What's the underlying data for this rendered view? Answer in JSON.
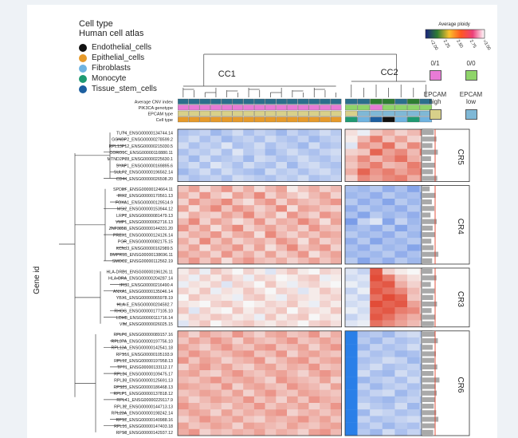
{
  "legend": {
    "title_line1": "Cell type",
    "title_line2": "Human cell atlas",
    "items": [
      {
        "label": "Endothelial_cells",
        "color": "#111111"
      },
      {
        "label": "Epithelial_cells",
        "color": "#e69a2a"
      },
      {
        "label": "Fibroblasts",
        "color": "#6fb3e0"
      },
      {
        "label": "Monocyte",
        "color": "#1f9a72"
      },
      {
        "label": "Tissue_stem_cells",
        "color": "#1d5fa0"
      }
    ]
  },
  "ploidy_legend": {
    "title": "Average ploidy",
    "ticks": [
      "<2.00",
      "2.25",
      "2.50",
      "2.75",
      ">3.00"
    ],
    "colors": [
      "#1a237e",
      "#2e7d32",
      "#fbc02d",
      "#ff5722",
      "#ec407a",
      "#ffffff"
    ]
  },
  "genotype_legend": {
    "items": [
      {
        "label": "0/1",
        "color": "#e87bd6"
      },
      {
        "label": "0/0",
        "color": "#8fd46a"
      }
    ]
  },
  "epcam_legend": {
    "items": [
      {
        "label": "EPCAM high",
        "color": "#d8d08a"
      },
      {
        "label": "EPCAM low",
        "color": "#7fb8d6"
      }
    ]
  },
  "chart_data": {
    "type": "heatmap",
    "y_axis_label": "Gene id",
    "column_clusters": [
      {
        "label": "CC1",
        "n_cols": 15
      },
      {
        "label": "CC2",
        "n_cols": 7
      }
    ],
    "annotation_rows": [
      "Average CNV index",
      "PIK3CA genotype",
      "EPCAM type",
      "Cell type"
    ],
    "annotation_colors": {
      "Average CNV index": "#2b6f8c",
      "PIK3CA genotype": "#e87bd6",
      "EPCAM type": "#d8d08a",
      "Cell type": "#e69a2a"
    },
    "annotation_overrides": {
      "Average CNV index": {
        "17": "#2e7d32",
        "18": "#2e7d32",
        "20": "#2e7d32"
      },
      "PIK3CA genotype": {
        "15": "#8fd46a",
        "16": "#8fd46a",
        "17": "#e87bd6",
        "18": "#8fd46a",
        "19": "#8fd46a",
        "20": "#8fd46a",
        "21": "#8fd46a"
      },
      "EPCAM type": {
        "16": "#7fb8d6",
        "17": "#7fb8d6",
        "18": "#7fb8d6",
        "19": "#7fb8d6",
        "20": "#7fb8d6",
        "21": "#7fb8d6"
      },
      "Cell type": {
        "15": "#1f9a72",
        "16": "#6fb3e0",
        "17": "#1d5fa0",
        "18": "#111111",
        "19": "#6fb3e0",
        "20": "#1f9a72",
        "21": "#6fb3e0"
      }
    },
    "row_clusters": [
      {
        "label": "CR5",
        "genes": [
          "TUT4_ENSG00000134744.14",
          "GGNBP2_ENSG00000278599.2",
          "RPL13P12_ENSG00000215030.5",
          "CORO1C_ENSG00000110880.11",
          "MTND2P28_ENSG00000225630.1",
          "SYAP1_ENSG00000169895.6",
          "SULF2_ENSG00000196562.14",
          "CD44_ENSG00000026508.20"
        ]
      },
      {
        "label": "CR4",
        "genes": [
          "SPDEF_ENSG00000124664.11",
          "IRX2_ENSG00000170561.13",
          "FOXA1_ENSG00000129514.9",
          "MSI2_ENSG00000153944.12",
          "LRP2_ENSG00000081479.13",
          "VMP1_ENSG00000062716.13",
          "ZNF385B_ENSG00000144331.20",
          "PREX1_ENSG00000124126.14",
          "PGR_ENSG00000082175.15",
          "KCNJ3_ENSG00000162989.5",
          "BMPR1B_ENSG00000138696.11",
          "SMOC2_ENSG00000112562.19"
        ]
      },
      {
        "label": "CR3",
        "genes": [
          "HLA-DRB1_ENSG00000196126.11",
          "HLA-DRA_ENSG00000204287.14",
          "IFI30_ENSG00000216490.4",
          "ANXA1_ENSG00000135046.14",
          "YBX1_ENSG00000065978.19",
          "HLA-E_ENSG00000204592.7",
          "RHOG_ENSG00000177105.10",
          "LDHB_ENSG00000111716.14",
          "VIM_ENSG00000026025.15"
        ]
      },
      {
        "label": "CR6",
        "genes": [
          "RPLP0_ENSG00000089157.16",
          "RPL37A_ENSG00000197756.10",
          "RPL13A_ENSG00000142541.18",
          "RPS16_ENSG00000105193.9",
          "RPL12_ENSG00000197958.13",
          "TPT1_ENSG00000133112.17",
          "RPL34_ENSG00000109475.17",
          "RPL23_ENSG00000125691.13",
          "RPS23_ENSG00000186468.13",
          "RPLP1_ENSG00000137818.12",
          "RPL41_ENSG00000229117.9",
          "RPL32_ENSG00000144713.13",
          "RPL23A_ENSG00000198242.14",
          "RPS2_ENSG00000140988.16",
          "RPL10_ENSG00000147403.18",
          "RPS8_ENSG00000142937.12"
        ]
      }
    ],
    "value_range": [
      -1.5,
      1.5
    ],
    "color_scale": {
      "low": "#3b6fe0",
      "mid": "#f7f7f7",
      "high": "#e0402a"
    },
    "values_cc1": [
      [
        -0.6,
        -0.5,
        -0.4,
        -0.7,
        -0.5,
        -0.3,
        -0.6,
        -0.4,
        -0.5,
        -0.7,
        -0.4,
        -0.6,
        -0.5,
        -0.3,
        -0.5
      ],
      [
        -0.5,
        -0.3,
        -0.6,
        -0.4,
        -0.7,
        -0.5,
        -0.4,
        -0.6,
        -0.3,
        -0.5,
        -0.6,
        -0.4,
        -0.7,
        -0.5,
        -0.4
      ],
      [
        -0.3,
        -0.6,
        -0.4,
        -0.5,
        -0.2,
        -0.6,
        -0.5,
        -0.3,
        -0.6,
        -0.4,
        -0.5,
        -0.7,
        -0.3,
        -0.6,
        -0.5
      ],
      [
        -0.6,
        -0.4,
        -0.5,
        -0.3,
        -0.6,
        -0.2,
        -0.5,
        -0.4,
        -0.7,
        -0.5,
        -0.3,
        -0.5,
        -0.6,
        -0.4,
        -0.3
      ],
      [
        -0.4,
        -0.7,
        -0.3,
        -0.6,
        -0.5,
        -0.4,
        -0.7,
        -0.3,
        -0.4,
        -0.6,
        -0.5,
        -0.3,
        -0.5,
        -0.6,
        -0.4
      ],
      [
        -0.5,
        -0.3,
        -0.6,
        -0.2,
        -0.4,
        -0.6,
        -0.3,
        -0.5,
        -0.6,
        -0.3,
        -0.7,
        -0.4,
        -0.3,
        -0.5,
        -0.6
      ],
      [
        -0.7,
        -0.5,
        -0.3,
        -0.6,
        -0.3,
        -0.5,
        -0.6,
        -0.7,
        -0.3,
        -0.5,
        -0.4,
        -0.6,
        -0.4,
        -0.3,
        -0.5
      ],
      [
        -0.4,
        -0.6,
        -0.5,
        -0.4,
        -0.6,
        -0.3,
        -0.4,
        -0.5,
        -0.6,
        -0.4,
        -0.5,
        -0.3,
        -0.6,
        -0.5,
        -0.4
      ],
      [
        0.4,
        0.7,
        0.2,
        0.5,
        0.8,
        0.3,
        0.6,
        0.2,
        0.5,
        0.7,
        0.1,
        0.4,
        0.6,
        0.3,
        0.5
      ],
      [
        0.6,
        0.3,
        0.8,
        0.4,
        0.2,
        0.7,
        0.5,
        0.9,
        0.3,
        0.6,
        0.4,
        0.2,
        0.5,
        0.7,
        0.3
      ],
      [
        0.3,
        0.8,
        0.5,
        0.6,
        0.9,
        0.4,
        0.2,
        0.6,
        0.8,
        0.3,
        0.7,
        0.5,
        0.4,
        0.6,
        0.8
      ],
      [
        0.7,
        0.2,
        0.6,
        0.9,
        0.4,
        0.8,
        0.6,
        0.3,
        0.5,
        0.9,
        0.2,
        0.7,
        0.6,
        0.4,
        0.3
      ],
      [
        0.2,
        0.6,
        0.4,
        0.3,
        0.7,
        0.5,
        0.9,
        0.4,
        0.6,
        0.2,
        0.8,
        0.5,
        0.3,
        0.8,
        0.6
      ],
      [
        0.5,
        0.9,
        0.3,
        0.7,
        0.5,
        0.2,
        0.4,
        0.8,
        0.3,
        0.6,
        0.5,
        0.9,
        0.6,
        0.2,
        0.7
      ],
      [
        0.8,
        0.4,
        0.7,
        0.2,
        0.6,
        0.9,
        0.3,
        0.5,
        0.7,
        0.4,
        0.6,
        0.3,
        0.8,
        0.5,
        0.4
      ],
      [
        0.3,
        0.6,
        0.5,
        0.8,
        0.3,
        0.6,
        0.7,
        0.2,
        0.9,
        0.5,
        0.3,
        0.6,
        0.4,
        0.7,
        0.6
      ],
      [
        0.6,
        0.3,
        0.9,
        0.4,
        0.7,
        0.3,
        0.5,
        0.6,
        0.4,
        0.8,
        0.6,
        0.2,
        0.7,
        0.3,
        0.5
      ],
      [
        0.4,
        0.7,
        0.2,
        0.6,
        0.5,
        0.8,
        0.3,
        0.7,
        0.2,
        0.5,
        0.9,
        0.4,
        0.6,
        0.8,
        0.3
      ],
      [
        0.7,
        0.5,
        0.6,
        0.3,
        0.8,
        0.4,
        0.6,
        0.3,
        0.7,
        0.3,
        0.5,
        0.8,
        0.2,
        0.5,
        0.7
      ],
      [
        0.5,
        0.8,
        0.4,
        0.7,
        0.2,
        0.6,
        0.8,
        0.5,
        0.4,
        0.6,
        0.3,
        0.5,
        0.7,
        0.4,
        0.6
      ],
      [
        0.1,
        0.3,
        -0.1,
        0.4,
        0.2,
        0.0,
        0.3,
        0.1,
        -0.2,
        0.2,
        0.4,
        0.1,
        0.0,
        0.3,
        0.2
      ],
      [
        0.2,
        -0.1,
        0.3,
        0.1,
        0.4,
        0.2,
        -0.1,
        0.3,
        0.2,
        0.0,
        0.1,
        0.3,
        0.4,
        -0.1,
        0.1
      ],
      [
        -0.1,
        0.2,
        0.1,
        0.3,
        -0.2,
        0.3,
        0.2,
        0.0,
        0.4,
        0.1,
        -0.1,
        0.2,
        0.3,
        0.1,
        0.0
      ],
      [
        0.3,
        0.1,
        0.4,
        -0.1,
        0.2,
        0.1,
        0.4,
        0.2,
        0.0,
        0.3,
        0.2,
        -0.2,
        0.1,
        0.4,
        0.2
      ],
      [
        0.0,
        0.4,
        0.2,
        0.2,
        0.1,
        -0.1,
        0.3,
        0.4,
        0.1,
        -0.1,
        0.3,
        0.2,
        0.1,
        0.2,
        0.3
      ],
      [
        0.2,
        0.1,
        0.0,
        0.3,
        0.4,
        0.2,
        0.0,
        0.1,
        0.3,
        0.2,
        0.4,
        0.1,
        -0.1,
        0.3,
        0.1
      ],
      [
        0.4,
        -0.2,
        0.3,
        0.1,
        0.0,
        0.4,
        0.1,
        0.3,
        0.2,
        0.4,
        0.0,
        0.3,
        0.2,
        0.1,
        0.4
      ],
      [
        0.1,
        0.3,
        0.2,
        0.4,
        0.3,
        0.1,
        0.2,
        -0.1,
        0.4,
        0.1,
        0.3,
        0.4,
        0.0,
        0.2,
        0.1
      ],
      [
        -0.2,
        0.2,
        0.4,
        0.0,
        0.2,
        0.3,
        0.4,
        0.2,
        0.1,
        0.3,
        0.2,
        0.0,
        0.3,
        0.4,
        0.2
      ],
      [
        0.6,
        0.3,
        0.7,
        0.5,
        0.4,
        0.8,
        0.5,
        0.3,
        0.6,
        0.7,
        0.4,
        0.5,
        0.8,
        0.3,
        0.6
      ],
      [
        0.4,
        0.7,
        0.5,
        0.8,
        0.6,
        0.3,
        0.7,
        0.5,
        0.4,
        0.6,
        0.8,
        0.4,
        0.5,
        0.7,
        0.5
      ],
      [
        0.7,
        0.5,
        0.3,
        0.6,
        0.8,
        0.5,
        0.4,
        0.7,
        0.8,
        0.4,
        0.5,
        0.7,
        0.3,
        0.6,
        0.8
      ],
      [
        0.5,
        0.8,
        0.6,
        0.4,
        0.5,
        0.7,
        0.8,
        0.4,
        0.5,
        0.8,
        0.3,
        0.6,
        0.7,
        0.5,
        0.4
      ],
      [
        0.8,
        0.4,
        0.7,
        0.6,
        0.3,
        0.5,
        0.6,
        0.8,
        0.3,
        0.5,
        0.7,
        0.8,
        0.4,
        0.6,
        0.7
      ],
      [
        0.3,
        0.6,
        0.8,
        0.5,
        0.7,
        0.4,
        0.3,
        0.6,
        0.7,
        0.4,
        0.6,
        0.5,
        0.8,
        0.4,
        0.5
      ],
      [
        0.6,
        0.7,
        0.4,
        0.3,
        0.6,
        0.8,
        0.5,
        0.4,
        0.6,
        0.7,
        0.5,
        0.3,
        0.6,
        0.8,
        0.6
      ],
      [
        0.5,
        0.4,
        0.6,
        0.8,
        0.5,
        0.6,
        0.7,
        0.5,
        0.3,
        0.8,
        0.6,
        0.5,
        0.4,
        0.7,
        0.3
      ],
      [
        0.7,
        0.6,
        0.5,
        0.4,
        0.8,
        0.3,
        0.6,
        0.7,
        0.5,
        0.4,
        0.8,
        0.6,
        0.5,
        0.3,
        0.7
      ],
      [
        0.4,
        0.5,
        0.7,
        0.6,
        0.4,
        0.7,
        0.3,
        0.6,
        0.8,
        0.5,
        0.4,
        0.7,
        0.6,
        0.5,
        0.4
      ],
      [
        0.6,
        0.3,
        0.5,
        0.7,
        0.6,
        0.5,
        0.8,
        0.4,
        0.6,
        0.3,
        0.7,
        0.4,
        0.8,
        0.6,
        0.5
      ],
      [
        0.8,
        0.6,
        0.4,
        0.5,
        0.3,
        0.6,
        0.5,
        0.8,
        0.4,
        0.6,
        0.5,
        0.7,
        0.3,
        0.5,
        0.8
      ],
      [
        0.5,
        0.7,
        0.6,
        0.3,
        0.7,
        0.4,
        0.6,
        0.5,
        0.7,
        0.8,
        0.3,
        0.5,
        0.6,
        0.4,
        0.6
      ],
      [
        0.3,
        0.5,
        0.8,
        0.6,
        0.5,
        0.7,
        0.4,
        0.3,
        0.6,
        0.5,
        0.6,
        0.8,
        0.5,
        0.7,
        0.4
      ],
      [
        0.7,
        0.4,
        0.5,
        0.7,
        0.6,
        0.3,
        0.7,
        0.6,
        0.5,
        0.4,
        0.7,
        0.5,
        0.4,
        0.6,
        0.7
      ],
      [
        0.6,
        0.8,
        0.3,
        0.5,
        0.4,
        0.6,
        0.5,
        0.7,
        0.4,
        0.6,
        0.5,
        0.3,
        0.7,
        0.8,
        0.5
      ]
    ],
    "values_cc2": [
      [
        0.2,
        -0.1,
        0.4,
        0.6,
        0.3,
        0.5,
        0.8
      ],
      [
        0.1,
        0.5,
        1.0,
        0.4,
        0.7,
        0.3,
        0.2
      ],
      [
        -0.2,
        0.8,
        0.6,
        1.1,
        0.4,
        0.9,
        0.6
      ],
      [
        0.3,
        0.4,
        1.2,
        0.7,
        0.9,
        0.5,
        1.0
      ],
      [
        0.5,
        0.9,
        0.5,
        0.8,
        1.1,
        0.6,
        0.4
      ],
      [
        0.4,
        0.7,
        1.0,
        0.5,
        0.6,
        1.0,
        0.8
      ],
      [
        0.6,
        1.2,
        0.8,
        1.0,
        0.7,
        0.9,
        1.1
      ],
      [
        0.3,
        0.9,
        0.7,
        0.9,
        1.0,
        0.6,
        0.9
      ],
      [
        -0.6,
        -0.7,
        -0.5,
        -0.8,
        -0.6,
        -0.9,
        -0.5
      ],
      [
        -0.7,
        -0.6,
        -0.8,
        -0.5,
        -0.7,
        -0.6,
        -0.8
      ],
      [
        -0.5,
        -0.8,
        -0.6,
        -0.9,
        -0.5,
        -0.7,
        -0.6
      ],
      [
        -0.8,
        -0.5,
        -0.7,
        -0.6,
        -0.8,
        -0.5,
        -0.7
      ],
      [
        -0.6,
        -0.9,
        -0.5,
        -0.7,
        -0.6,
        -0.8,
        -0.5
      ],
      [
        -1.0,
        -0.4,
        -0.2,
        -0.9,
        -0.4,
        -0.7,
        -0.6
      ],
      [
        -0.7,
        -0.6,
        -0.8,
        -0.5,
        -0.9,
        -0.6,
        -0.7
      ],
      [
        -0.5,
        -0.7,
        -0.6,
        -0.8,
        -0.5,
        -0.7,
        -0.9
      ],
      [
        -0.8,
        -0.5,
        -0.9,
        -0.6,
        -0.7,
        -0.5,
        -0.6
      ],
      [
        -0.6,
        -0.8,
        -0.5,
        -0.7,
        -0.6,
        -0.9,
        -0.8
      ],
      [
        -0.7,
        -0.6,
        -0.7,
        -0.5,
        -0.8,
        -0.6,
        -0.5
      ],
      [
        -0.5,
        -0.9,
        -0.6,
        -0.8,
        -0.5,
        -0.7,
        -0.7
      ],
      [
        -0.2,
        -0.4,
        1.3,
        0.3,
        0.1,
        0.0,
        0.2
      ],
      [
        -0.3,
        -0.2,
        1.4,
        1.0,
        0.4,
        0.2,
        0.1
      ],
      [
        -0.1,
        -0.3,
        1.2,
        1.3,
        0.6,
        0.3,
        0.4
      ],
      [
        -0.4,
        -0.1,
        1.3,
        1.1,
        0.9,
        0.5,
        0.2
      ],
      [
        -0.2,
        -0.4,
        1.1,
        1.4,
        1.2,
        0.4,
        0.3
      ],
      [
        -0.3,
        -0.2,
        1.4,
        1.2,
        1.3,
        0.7,
        0.5
      ],
      [
        -0.1,
        -0.3,
        1.2,
        1.3,
        1.0,
        0.9,
        0.4
      ],
      [
        -0.4,
        -0.2,
        1.3,
        1.1,
        0.8,
        0.6,
        0.7
      ],
      [
        -0.2,
        -0.1,
        1.1,
        0.9,
        0.7,
        0.5,
        0.3
      ],
      [
        -1.6,
        -0.6,
        -0.5,
        -0.7,
        -0.4,
        -0.3,
        -0.5
      ],
      [
        -1.6,
        -0.5,
        -0.7,
        -0.4,
        -0.6,
        -0.5,
        -0.3
      ],
      [
        -1.6,
        -0.7,
        -0.4,
        -0.6,
        -0.5,
        -0.3,
        -0.6
      ],
      [
        -1.6,
        -0.4,
        -0.6,
        -0.5,
        -0.7,
        -0.6,
        -0.4
      ],
      [
        -1.6,
        -0.6,
        -0.5,
        -0.3,
        -0.4,
        -0.7,
        -0.5
      ],
      [
        -1.6,
        -0.5,
        -0.3,
        -0.6,
        -0.5,
        -0.4,
        -0.7
      ],
      [
        -1.6,
        -0.3,
        -0.6,
        -0.7,
        -0.3,
        -0.5,
        -0.4
      ],
      [
        -1.6,
        -0.7,
        -0.5,
        -0.4,
        -0.6,
        -0.3,
        -0.6
      ],
      [
        -1.6,
        -0.4,
        -0.7,
        -0.5,
        -0.4,
        -0.6,
        -0.5
      ],
      [
        -1.6,
        -0.6,
        -0.4,
        -0.3,
        -0.7,
        -0.5,
        -0.3
      ],
      [
        -1.6,
        -0.5,
        -0.6,
        -0.7,
        -0.5,
        -0.4,
        -0.6
      ],
      [
        -1.6,
        -0.3,
        -0.5,
        -0.6,
        -0.3,
        -0.7,
        -0.4
      ],
      [
        -1.6,
        -0.7,
        -0.3,
        -0.4,
        -0.6,
        -0.5,
        -0.7
      ],
      [
        -1.6,
        -0.4,
        -0.6,
        -0.5,
        -0.4,
        -0.3,
        -0.5
      ],
      [
        -1.6,
        -0.6,
        -0.4,
        -0.7,
        -0.5,
        -0.6,
        -0.3
      ],
      [
        -1.6,
        -0.5,
        -0.7,
        -0.3,
        -0.6,
        -0.4,
        -0.6
      ]
    ],
    "row_bars": [
      0.45,
      0.55,
      0.4,
      0.6,
      0.35,
      0.5,
      0.42,
      0.58,
      0.3,
      0.52,
      0.38,
      0.47,
      0.33,
      0.56,
      0.41,
      0.49,
      0.36,
      0.44,
      0.62,
      0.39,
      0.4,
      0.55,
      0.34,
      0.48,
      0.43,
      0.57,
      0.37,
      0.51,
      0.46,
      0.5,
      0.6,
      0.41,
      0.53,
      0.47,
      0.58,
      0.44,
      0.66,
      0.52,
      0.56,
      0.49,
      0.45,
      0.54,
      0.62,
      0.48,
      0.43
    ],
    "row_bar_max": 1.0,
    "row_bar_ref": 0.5
  }
}
